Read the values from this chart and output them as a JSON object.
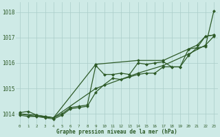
{
  "xlabel": "Graphe pression niveau de la mer (hPa)",
  "xlim": [
    -0.5,
    23.5
  ],
  "ylim": [
    1013.6,
    1018.4
  ],
  "yticks": [
    1014,
    1015,
    1016,
    1017,
    1018
  ],
  "xticks": [
    0,
    1,
    2,
    3,
    4,
    5,
    6,
    7,
    8,
    9,
    10,
    11,
    12,
    13,
    14,
    15,
    16,
    17,
    18,
    19,
    20,
    21,
    22,
    23
  ],
  "bg_color": "#ceeae6",
  "line_color": "#2d5a27",
  "grid_color": "#aaccc8",
  "series": [
    {
      "x": [
        0,
        1,
        2,
        3,
        4,
        5,
        6,
        7,
        8,
        9,
        10,
        11,
        12,
        13,
        14,
        15,
        16,
        17,
        18,
        19,
        20,
        21,
        22,
        23
      ],
      "y": [
        1014.05,
        1014.1,
        1013.95,
        1013.9,
        1013.85,
        1014.0,
        1014.25,
        1014.3,
        1014.35,
        1015.9,
        1015.55,
        1015.55,
        1015.6,
        1015.55,
        1016.0,
        1015.95,
        1016.0,
        1016.05,
        1015.85,
        1015.85,
        1016.55,
        1016.7,
        1017.05,
        1017.1
      ]
    },
    {
      "x": [
        0,
        1,
        2,
        3,
        4,
        5,
        6,
        7,
        8,
        9,
        10,
        11,
        12,
        13,
        14,
        15,
        16,
        17,
        18,
        19,
        20,
        21,
        22,
        23
      ],
      "y": [
        1013.95,
        1013.9,
        1013.9,
        1013.85,
        1013.8,
        1013.95,
        1014.2,
        1014.25,
        1014.3,
        1014.85,
        1015.15,
        1015.4,
        1015.35,
        1015.45,
        1015.55,
        1015.6,
        1015.6,
        1015.85,
        1015.85,
        1015.85,
        1016.3,
        1016.6,
        1017.05,
        1017.1
      ]
    },
    {
      "x": [
        0,
        2,
        4,
        9,
        14,
        17,
        20,
        22,
        23
      ],
      "y": [
        1014.0,
        1013.95,
        1013.85,
        1015.95,
        1016.1,
        1016.1,
        1016.55,
        1016.65,
        1018.05
      ]
    },
    {
      "x": [
        0,
        2,
        4,
        9,
        14,
        17,
        20,
        22,
        23
      ],
      "y": [
        1014.0,
        1013.9,
        1013.85,
        1015.0,
        1015.6,
        1015.9,
        1016.35,
        1016.7,
        1017.05
      ]
    }
  ],
  "marker": "D",
  "markersize": 2.5,
  "linewidth": 0.9
}
